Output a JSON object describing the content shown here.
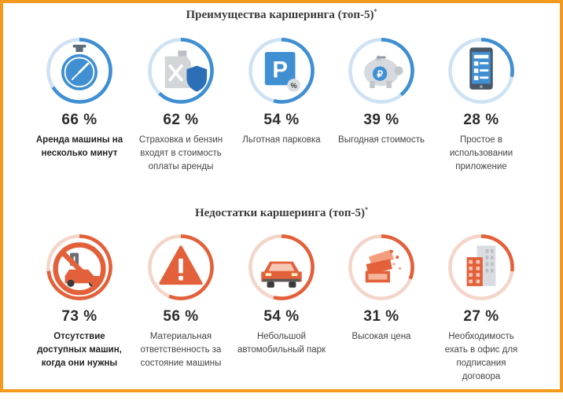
{
  "colors": {
    "frame": "#f39a1e",
    "benefits_arc": "#3f8fd2",
    "benefits_track": "#cfe2f3",
    "drawbacks_arc": "#e3613a",
    "drawbacks_track": "#f3d6c9"
  },
  "chart_data": [
    {
      "type": "radial-progress",
      "title": "Преимущества каршеринга (топ-5)",
      "title_mark": "*",
      "categories": [
        "Аренда машины на несколько минут",
        "Страховка и бензин входят в стоимость оплаты аренды",
        "Льготная парковка",
        "Выгодная стоимость",
        "Простое в использовании приложение"
      ],
      "values": [
        66,
        62,
        54,
        39,
        28
      ],
      "value_labels": [
        "66 %",
        "62 %",
        "54 %",
        "39 %",
        "28 %"
      ],
      "icons": [
        "stopwatch-icon",
        "fuel-can-shield-icon",
        "parking-icon",
        "piggy-bank-icon",
        "smartphone-app-icon"
      ],
      "bold_first_label": true
    },
    {
      "type": "radial-progress",
      "title": "Недостатки каршеринга (топ-5)",
      "title_mark": "*",
      "categories": [
        "Отсутствие доступных машин, когда они нужны",
        "Материальная ответственность за состояние машины",
        "Небольшой автомобильный парк",
        "Высокая цена",
        "Необходимость ехать в офис для подписания договора"
      ],
      "values": [
        73,
        56,
        54,
        31,
        27
      ],
      "value_labels": [
        "73 %",
        "56 %",
        "54 %",
        "31 %",
        "27 %"
      ],
      "icons": [
        "no-car-icon",
        "warning-icon",
        "car-icon",
        "banknotes-icon",
        "office-building-icon"
      ],
      "bold_first_label": true
    }
  ]
}
